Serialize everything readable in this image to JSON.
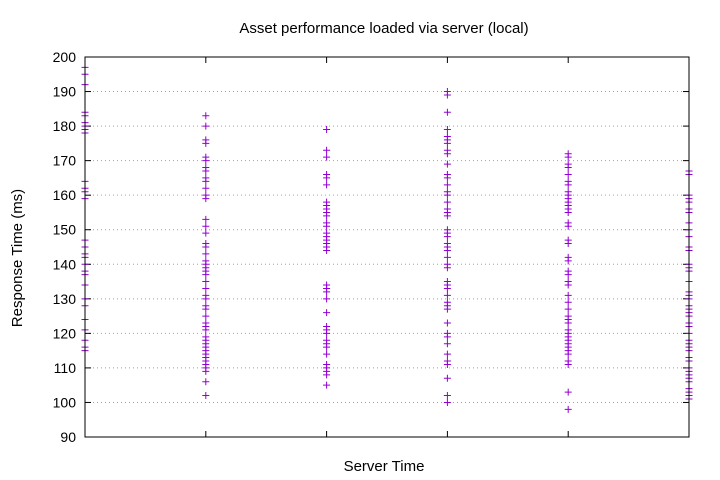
{
  "chart_data": {
    "type": "scatter",
    "title": "Asset performance loaded via server (local)",
    "xlabel": "Server Time",
    "ylabel": "Response Time (ms)",
    "ylim": [
      90,
      200
    ],
    "yticks": [
      90,
      100,
      110,
      120,
      130,
      140,
      150,
      160,
      170,
      180,
      190,
      200
    ],
    "xlim": [
      0,
      5
    ],
    "xticks": [
      0,
      1,
      2,
      3,
      4,
      5
    ],
    "xtick_labels": [
      "",
      "",
      "",
      "",
      "",
      ""
    ],
    "grid": true,
    "marker": "+",
    "marker_color": "#9400d3",
    "series": [
      {
        "x": 0,
        "values": [
          197,
          195,
          192,
          184,
          183,
          181,
          180,
          179,
          178,
          164,
          162,
          161,
          159,
          147,
          145,
          143,
          142,
          140,
          138,
          137,
          134,
          130,
          128,
          124,
          121,
          118,
          116,
          115
        ]
      },
      {
        "x": 1,
        "values": [
          183,
          180,
          176,
          175,
          171,
          170,
          168,
          167,
          165,
          164,
          162,
          160,
          159,
          153,
          151,
          149,
          146,
          145,
          143,
          141,
          140,
          139,
          138,
          137,
          135,
          133,
          131,
          130,
          128,
          127,
          125,
          123,
          122,
          121,
          119,
          118,
          117,
          116,
          115,
          114,
          113,
          112,
          111,
          110,
          109,
          106,
          102
        ]
      },
      {
        "x": 2,
        "values": [
          179,
          173,
          171,
          166,
          165,
          163,
          158,
          157,
          156,
          155,
          154,
          152,
          151,
          149,
          148,
          147,
          146,
          145,
          144,
          134,
          133,
          132,
          130,
          126,
          122,
          121,
          120,
          118,
          117,
          116,
          114,
          111,
          110,
          109,
          108,
          105
        ]
      },
      {
        "x": 3,
        "values": [
          190,
          189,
          184,
          179,
          177,
          176,
          175,
          173,
          172,
          169,
          166,
          165,
          163,
          161,
          160,
          158,
          156,
          155,
          154,
          150,
          149,
          148,
          146,
          145,
          144,
          142,
          140,
          139,
          135,
          134,
          133,
          131,
          129,
          128,
          127,
          123,
          120,
          119,
          117,
          114,
          112,
          111,
          107,
          102,
          100
        ]
      },
      {
        "x": 4,
        "values": [
          172,
          171,
          169,
          168,
          166,
          164,
          163,
          161,
          160,
          159,
          158,
          157,
          156,
          155,
          152,
          151,
          147,
          146,
          142,
          141,
          138,
          137,
          135,
          134,
          131,
          129,
          127,
          125,
          124,
          123,
          121,
          120,
          119,
          118,
          117,
          116,
          115,
          114,
          112,
          111,
          103,
          98
        ]
      },
      {
        "x": 5,
        "values": [
          167,
          166,
          160,
          159,
          158,
          156,
          155,
          152,
          150,
          148,
          145,
          144,
          140,
          139,
          138,
          135,
          132,
          131,
          130,
          128,
          127,
          126,
          125,
          123,
          122,
          120,
          118,
          117,
          116,
          115,
          113,
          112,
          110,
          109,
          108,
          107,
          106,
          104,
          103,
          102,
          101
        ]
      }
    ]
  }
}
